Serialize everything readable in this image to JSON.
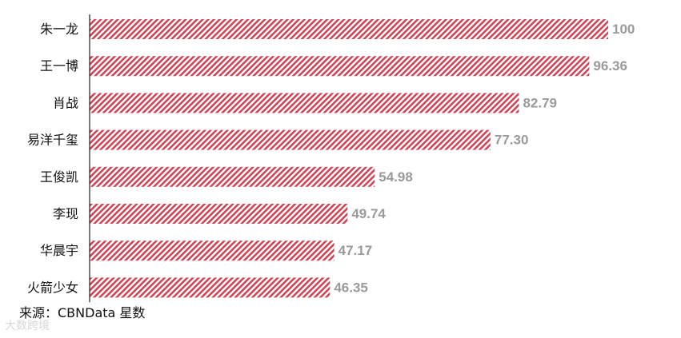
{
  "chart_data": {
    "type": "bar",
    "orientation": "horizontal",
    "categories": [
      "朱一龙",
      "王一博",
      "肖战",
      "易洋千玺",
      "王俊凯",
      "李现",
      "华晨宇",
      "火箭少女"
    ],
    "values": [
      100,
      96.36,
      82.79,
      77.3,
      54.98,
      49.74,
      47.17,
      46.35
    ],
    "value_labels": [
      "100",
      "96.36",
      "82.79",
      "77.30",
      "54.98",
      "49.74",
      "47.17",
      "46.35"
    ],
    "xlim": [
      0,
      100
    ],
    "grid": false,
    "legend": "none",
    "colors": {
      "bar": "#c8485a",
      "value_label": "#9a9a9a",
      "axis": "#222222"
    }
  },
  "source": "来源：CBNData 星数",
  "watermark": "大数跨境"
}
